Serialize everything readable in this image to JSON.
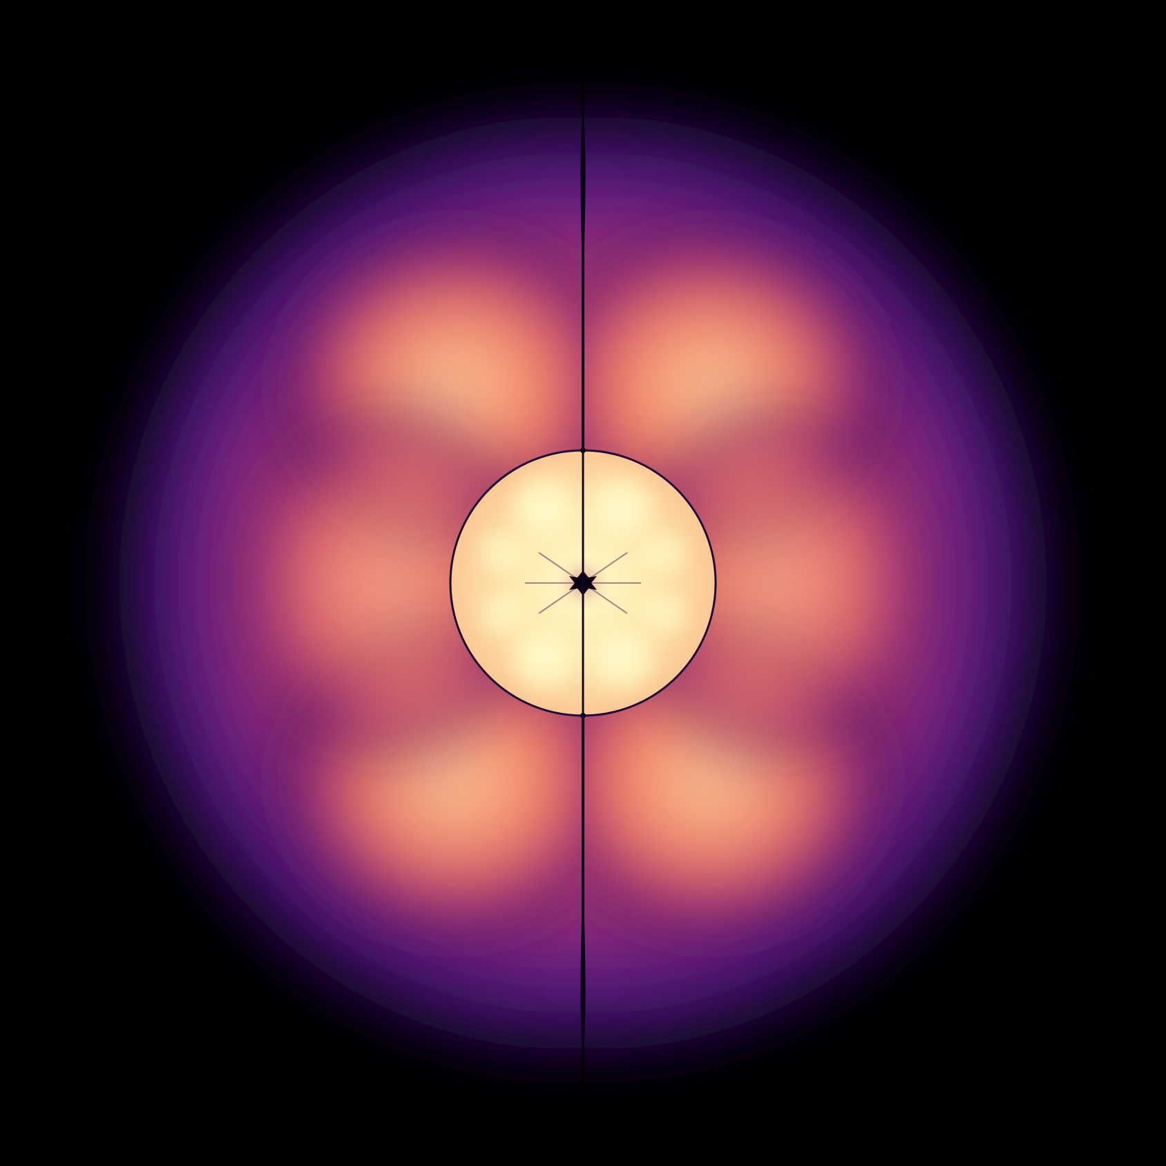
{
  "image": {
    "subject": "orbital-density-plot",
    "background_color": "#000000",
    "colormap": [
      "#000004",
      "#3b0f70",
      "#8c2981",
      "#de4968",
      "#fe9f6d",
      "#fcfdbf"
    ],
    "node_line_color": "#1a0838",
    "lobes_outer": 4,
    "lobes_inner": 8,
    "has_vertical_nodal_plane": true,
    "has_spherical_node": true
  }
}
